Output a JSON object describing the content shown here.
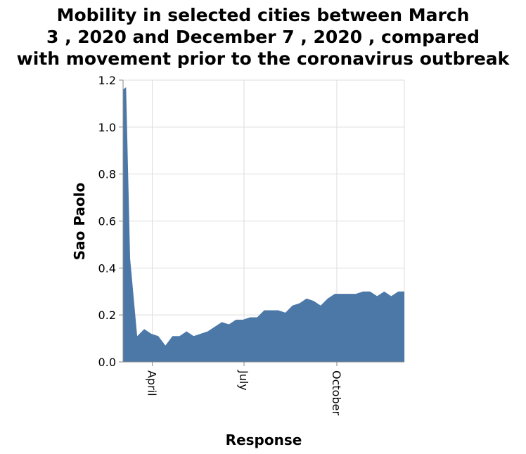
{
  "chart_data": {
    "type": "area",
    "title_lines": [
      "Mobility in selected cities between March",
      "3 , 2020 and December 7 , 2020 , compared",
      "with movement prior to the coronavirus outbreak"
    ],
    "xlabel": "Response",
    "ylabel": "Sao Paolo",
    "x_ticks": [
      "April",
      "July",
      "October"
    ],
    "x_tick_dates": [
      "2020-04-01",
      "2020-07-01",
      "2020-10-01"
    ],
    "xlim": [
      "2020-03-03",
      "2020-12-07"
    ],
    "ylim": [
      0,
      1.2
    ],
    "y_ticks": [
      "0.0",
      "0.2",
      "0.4",
      "0.6",
      "0.8",
      "1.0",
      "1.2"
    ],
    "y_tick_values": [
      0,
      0.2,
      0.4,
      0.6,
      0.8,
      1.0,
      1.2
    ],
    "grid": true,
    "colors": {
      "area": "#4c78a8",
      "grid": "#dddddd",
      "axis": "#888888"
    },
    "series": [
      {
        "x": [
          "2020-03-03",
          "2020-03-06",
          "2020-03-10",
          "2020-03-17",
          "2020-03-24",
          "2020-03-31",
          "2020-04-07",
          "2020-04-14",
          "2020-04-21",
          "2020-04-28",
          "2020-05-05",
          "2020-05-12",
          "2020-05-19",
          "2020-05-26",
          "2020-06-02",
          "2020-06-09",
          "2020-06-16",
          "2020-06-23",
          "2020-06-30",
          "2020-07-07",
          "2020-07-14",
          "2020-07-21",
          "2020-07-28",
          "2020-08-04",
          "2020-08-11",
          "2020-08-18",
          "2020-08-25",
          "2020-09-01",
          "2020-09-08",
          "2020-09-15",
          "2020-09-22",
          "2020-09-29",
          "2020-10-06",
          "2020-10-13",
          "2020-10-20",
          "2020-10-27",
          "2020-11-03",
          "2020-11-10",
          "2020-11-17",
          "2020-11-24",
          "2020-12-01",
          "2020-12-07"
        ],
        "values": [
          1.16,
          1.17,
          0.44,
          0.11,
          0.14,
          0.12,
          0.11,
          0.07,
          0.11,
          0.11,
          0.13,
          0.11,
          0.12,
          0.13,
          0.15,
          0.17,
          0.16,
          0.18,
          0.18,
          0.19,
          0.19,
          0.22,
          0.22,
          0.22,
          0.21,
          0.24,
          0.25,
          0.27,
          0.26,
          0.24,
          0.27,
          0.29,
          0.29,
          0.29,
          0.29,
          0.3,
          0.3,
          0.28,
          0.3,
          0.28,
          0.3,
          0.3
        ]
      }
    ]
  }
}
